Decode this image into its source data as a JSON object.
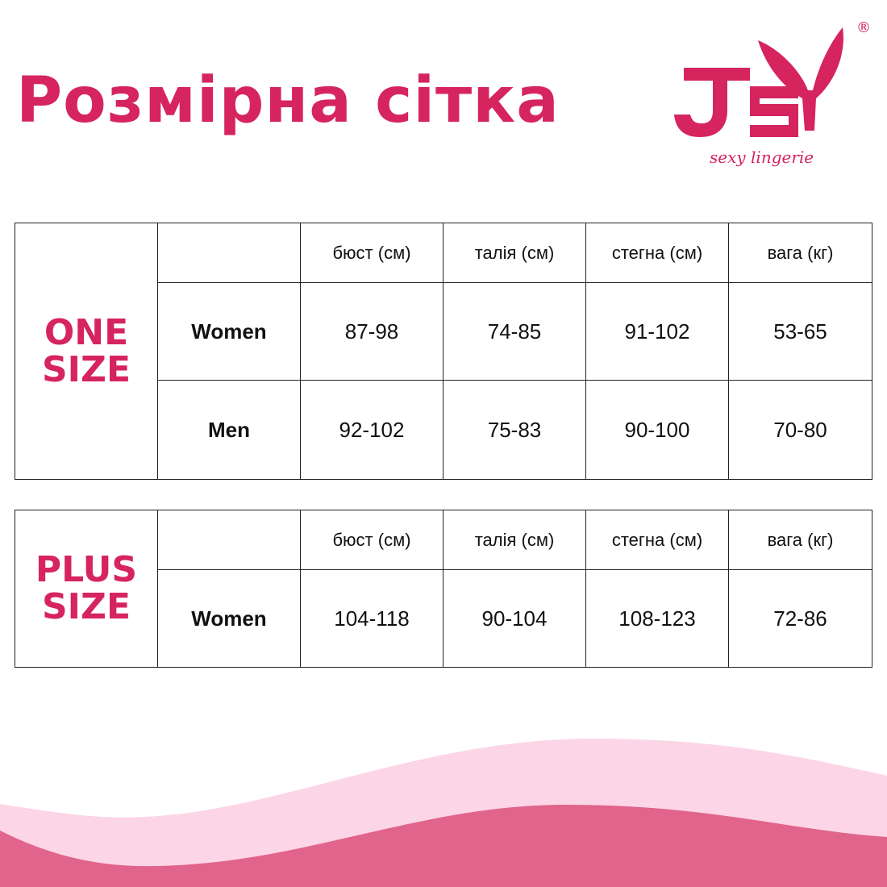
{
  "title": "Розмірна сітка",
  "logo": {
    "text": "JSY",
    "tagline": "sexy lingerie",
    "registered": "®"
  },
  "colors": {
    "brand": "#d6245f",
    "wave_light": "#fcd5e6",
    "wave_dark": "#e0648b"
  },
  "headers": [
    "бюст (см)",
    "талія (см)",
    "стегна (см)",
    "вага (кг)"
  ],
  "one_size": {
    "label_line1": "ONE",
    "label_line2": "SIZE",
    "rows": [
      {
        "label": "Women",
        "values": [
          "87-98",
          "74-85",
          "91-102",
          "53-65"
        ]
      },
      {
        "label": "Men",
        "values": [
          "92-102",
          "75-83",
          "90-100",
          "70-80"
        ]
      }
    ]
  },
  "plus_size": {
    "label_line1": "PLUS",
    "label_line2": "SIZE",
    "rows": [
      {
        "label": "Women",
        "values": [
          "104-118",
          "90-104",
          "108-123",
          "72-86"
        ]
      }
    ]
  }
}
